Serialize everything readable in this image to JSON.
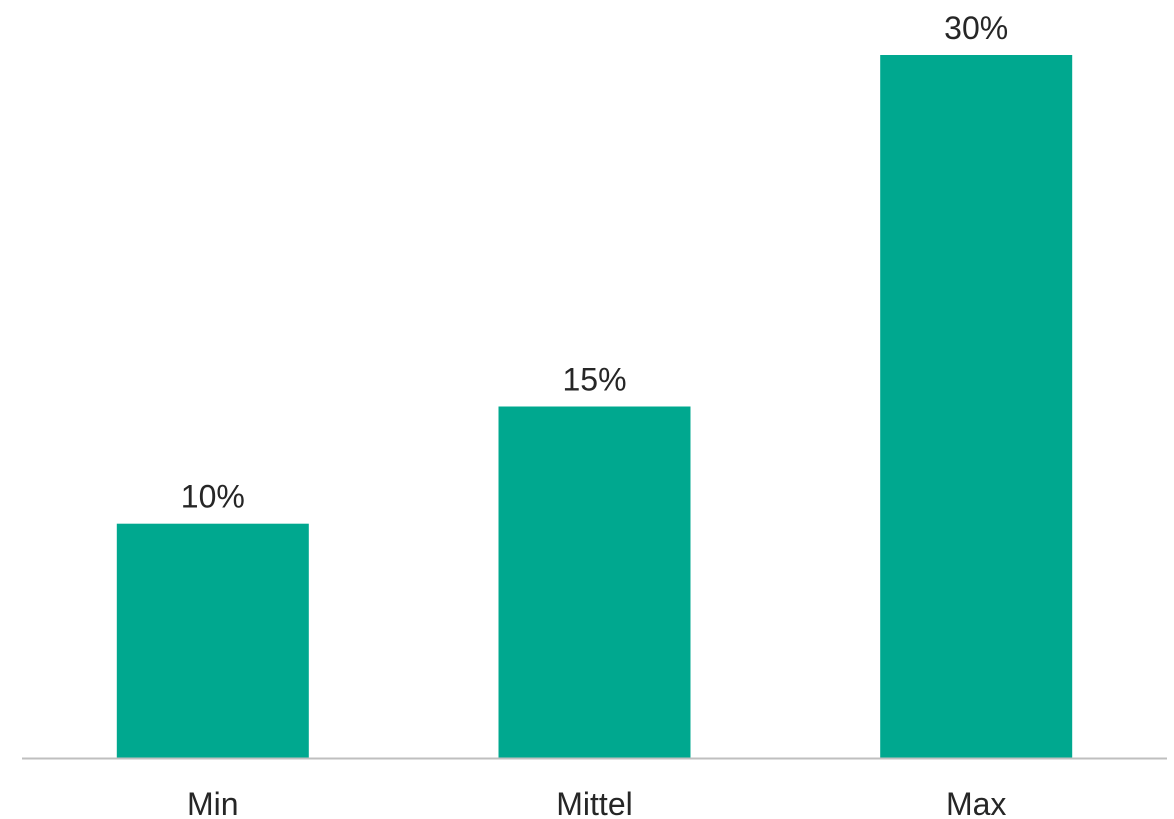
{
  "chart_data": {
    "type": "bar",
    "title": "",
    "xlabel": "",
    "ylabel": "",
    "categories": [
      "Min",
      "Mittel",
      "Max"
    ],
    "values": [
      10,
      15,
      30
    ],
    "value_labels": [
      "10%",
      "15%",
      "30%"
    ],
    "unit": "%",
    "ylim": [
      0,
      30
    ],
    "grid": false,
    "legend": "none",
    "bar_color": "#00A88F",
    "axis_color": "#BFBFBF",
    "text_color": "#262626"
  }
}
